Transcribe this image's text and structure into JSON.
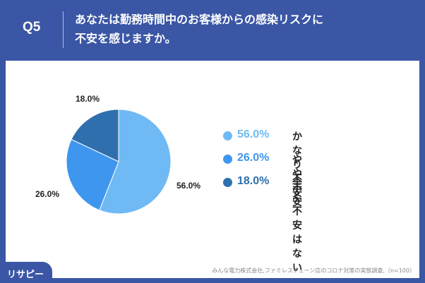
{
  "header": {
    "question_no": "Q5",
    "question_line1": "あなたは勤務時間中のお客様からの感染リスクに",
    "question_line2": "不安を感じますか。"
  },
  "chart_data": {
    "type": "pie",
    "slices": [
      {
        "label": "かなり不安",
        "value": 56.0,
        "display": "56.0%",
        "color": "#6fbaf4"
      },
      {
        "label": "やや不安",
        "value": 26.0,
        "display": "26.0%",
        "color": "#3f96ee"
      },
      {
        "label": "全く不安はない",
        "value": 18.0,
        "display": "18.0%",
        "color": "#2f6fae"
      }
    ],
    "legend_position": "right"
  },
  "source": "みんな電力株式会社,ファミレスチェーン店のコロナ対策の実態調査,（n=100）",
  "logo": {
    "text": "リサピー"
  },
  "colors": {
    "header_bg": "#3a56a5",
    "card_bg": "#ffffff"
  }
}
